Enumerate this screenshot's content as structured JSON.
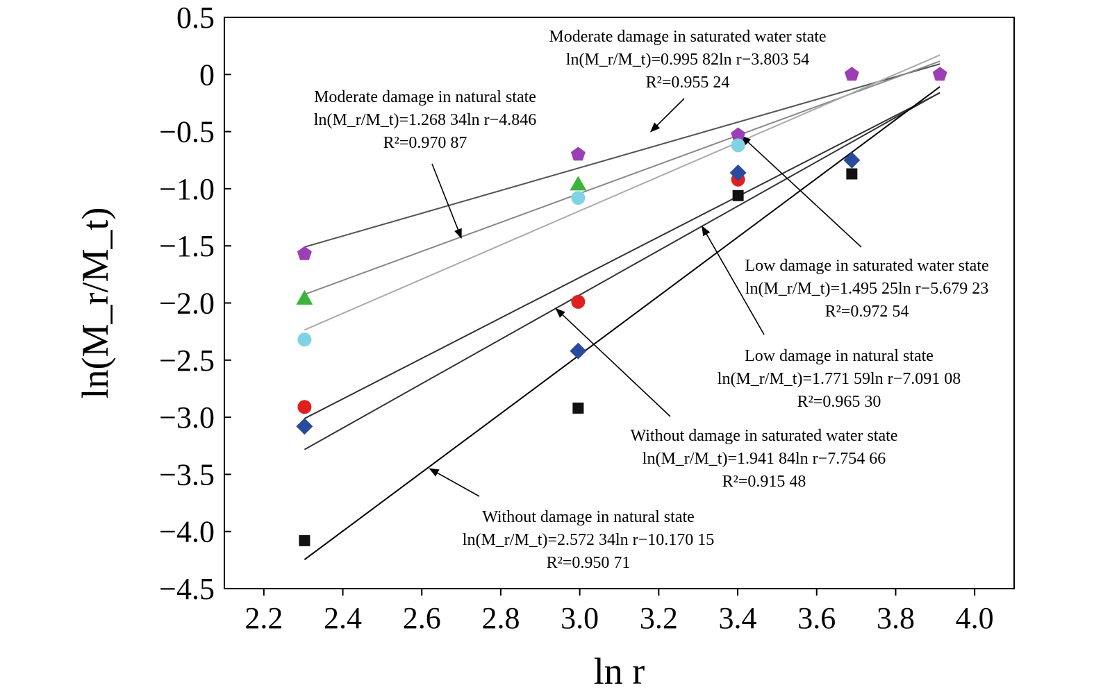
{
  "chart_data": {
    "type": "scatter",
    "xlabel": "ln r",
    "ylabel": "ln(M_r/M_t)",
    "xlim": [
      2.1,
      4.1
    ],
    "ylim": [
      -4.5,
      0.5
    ],
    "xticks": [
      2.2,
      2.4,
      2.6,
      2.8,
      3.0,
      3.2,
      3.4,
      3.6,
      3.8,
      4.0
    ],
    "yticks": [
      0.5,
      0,
      -0.5,
      -1.0,
      -1.5,
      -2.0,
      -2.5,
      -3.0,
      -3.5,
      -4.0,
      -4.5
    ],
    "xtick_labels": [
      "2.2",
      "2.4",
      "2.6",
      "2.8",
      "3.0",
      "3.2",
      "3.4",
      "3.6",
      "3.8",
      "4.0"
    ],
    "ytick_labels": [
      "0.5",
      "0",
      "−0.5",
      "−1.0",
      "−1.5",
      "−2.0",
      "−2.5",
      "−3.0",
      "−3.5",
      "−4.0",
      "−4.5"
    ],
    "grid": false,
    "series": [
      {
        "name": "Moderate damage in saturated water state",
        "marker": "pentagon",
        "color": "#9b3fb5",
        "x": [
          2.303,
          2.996,
          3.401,
          3.689,
          3.912
        ],
        "y": [
          -1.57,
          -0.7,
          -0.53,
          0.0,
          0.0
        ],
        "fit": {
          "slope": 0.99582,
          "intercept": -3.80354,
          "x_range": [
            2.303,
            3.912
          ],
          "color": "#555555"
        }
      },
      {
        "name": "Moderate damage in natural state",
        "marker": "triangle",
        "color": "#3cb43c",
        "x": [
          2.303,
          2.996
        ],
        "y": [
          -1.96,
          -0.96
        ],
        "fit": {
          "slope": 1.26834,
          "intercept": -4.846,
          "x_range": [
            2.303,
            3.912
          ],
          "color": "#888888"
        }
      },
      {
        "name": "Low damage in saturated water state",
        "marker": "circle",
        "color": "#7fd3e3",
        "x": [
          2.303,
          2.996,
          3.401
        ],
        "y": [
          -2.32,
          -1.08,
          -0.62
        ],
        "fit": {
          "slope": 1.49525,
          "intercept": -5.67923,
          "x_range": [
            2.303,
            3.912
          ],
          "color": "#aaaaaa"
        }
      },
      {
        "name": "Low damage in natural state",
        "marker": "circle",
        "color": "#e02020",
        "x": [
          2.303,
          2.996,
          3.401
        ],
        "y": [
          -2.91,
          -1.99,
          -0.92
        ],
        "fit": {
          "slope": 1.77159,
          "intercept": -7.09108,
          "x_range": [
            2.303,
            3.912
          ],
          "color": "#333333"
        }
      },
      {
        "name": "Without damage in saturated water state",
        "marker": "diamond",
        "color": "#2a4a9e",
        "x": [
          2.303,
          2.996,
          3.401,
          3.689
        ],
        "y": [
          -3.08,
          -2.42,
          -0.86,
          -0.75
        ],
        "fit": {
          "slope": 1.94184,
          "intercept": -7.75466,
          "x_range": [
            2.303,
            3.912
          ],
          "color": "#333333"
        }
      },
      {
        "name": "Without damage in natural state",
        "marker": "square",
        "color": "#111111",
        "x": [
          2.303,
          2.996,
          3.401,
          3.689
        ],
        "y": [
          -4.08,
          -2.92,
          -1.06,
          -0.87
        ],
        "fit": {
          "slope": 2.57234,
          "intercept": -10.17015,
          "x_range": [
            2.303,
            3.912
          ],
          "color": "#000000"
        }
      }
    ],
    "annotations": [
      {
        "lines": [
          "Moderate damage in saturated water state",
          "ln(M_r/M_t)=0.995 82ln r−3.803 54",
          "R²=0.955 24"
        ],
        "arrow_to": [
          3.18,
          -0.5
        ]
      },
      {
        "lines": [
          "Moderate damage in natural state",
          "ln(M_r/M_t)=1.268 34ln r−4.846",
          "R²=0.970 87"
        ],
        "arrow_to": [
          2.7,
          -1.43
        ]
      },
      {
        "lines": [
          "Low damage in saturated water state",
          "ln(M_r/M_t)=1.495 25ln r−5.679 23",
          "R²=0.972 54"
        ],
        "arrow_to": [
          3.41,
          -0.54
        ]
      },
      {
        "lines": [
          "Low damage in natural state",
          "ln(M_r/M_t)=1.771 59ln r−7.091 08",
          "R²=0.965 30"
        ],
        "arrow_to": [
          3.31,
          -1.33
        ]
      },
      {
        "lines": [
          "Without damage in saturated water state",
          "ln(M_r/M_t)=1.941 84ln r−7.754 66",
          "R²=0.915 48"
        ],
        "arrow_to": [
          2.94,
          -2.05
        ]
      },
      {
        "lines": [
          "Without damage in natural state",
          "ln(M_r/M_t)=2.572 34ln r−10.170 15",
          "R²=0.950 71"
        ],
        "arrow_to": [
          2.62,
          -3.45
        ]
      }
    ]
  }
}
